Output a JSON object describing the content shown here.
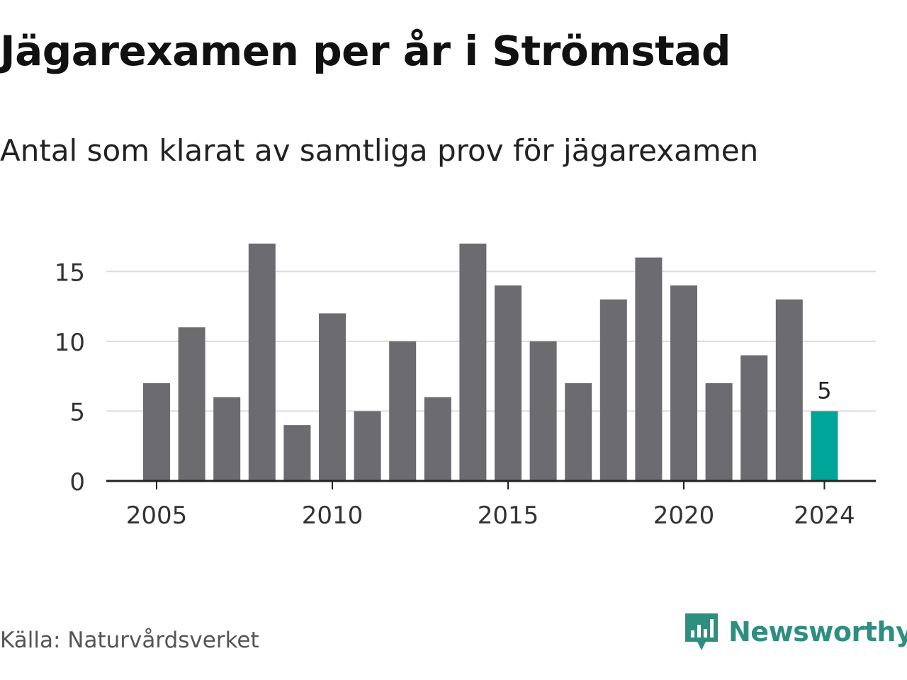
{
  "title": "Jägarexamen per år i Strömstad",
  "subtitle": "Antal som klarat av samtliga prov för jägarexamen",
  "source": "Källa: Naturvårdsverket",
  "brand": {
    "name": "Newsworthy",
    "icon": "newsworthy-logo-icon",
    "color": "#2e8f80"
  },
  "colors": {
    "bar": "#6b6b70",
    "highlight": "#00a59a",
    "grid": "#dcdcdc",
    "axis": "#222222"
  },
  "chart_data": {
    "type": "bar",
    "categories": [
      "2005",
      "2006",
      "2007",
      "2008",
      "2009",
      "2010",
      "2011",
      "2012",
      "2013",
      "2014",
      "2015",
      "2016",
      "2017",
      "2018",
      "2019",
      "2020",
      "2021",
      "2022",
      "2023",
      "2024"
    ],
    "values": [
      7,
      11,
      6,
      17,
      4,
      12,
      5,
      10,
      6,
      17,
      14,
      10,
      7,
      13,
      16,
      14,
      7,
      9,
      13,
      5
    ],
    "highlight_category": "2024",
    "highlight_label": "5",
    "x_tick_labels": [
      "2005",
      "2010",
      "2015",
      "2020",
      "2024"
    ],
    "y_ticks": [
      0,
      5,
      10,
      15
    ],
    "ylim": [
      0,
      17.5
    ],
    "grid": true,
    "legend": "none"
  }
}
